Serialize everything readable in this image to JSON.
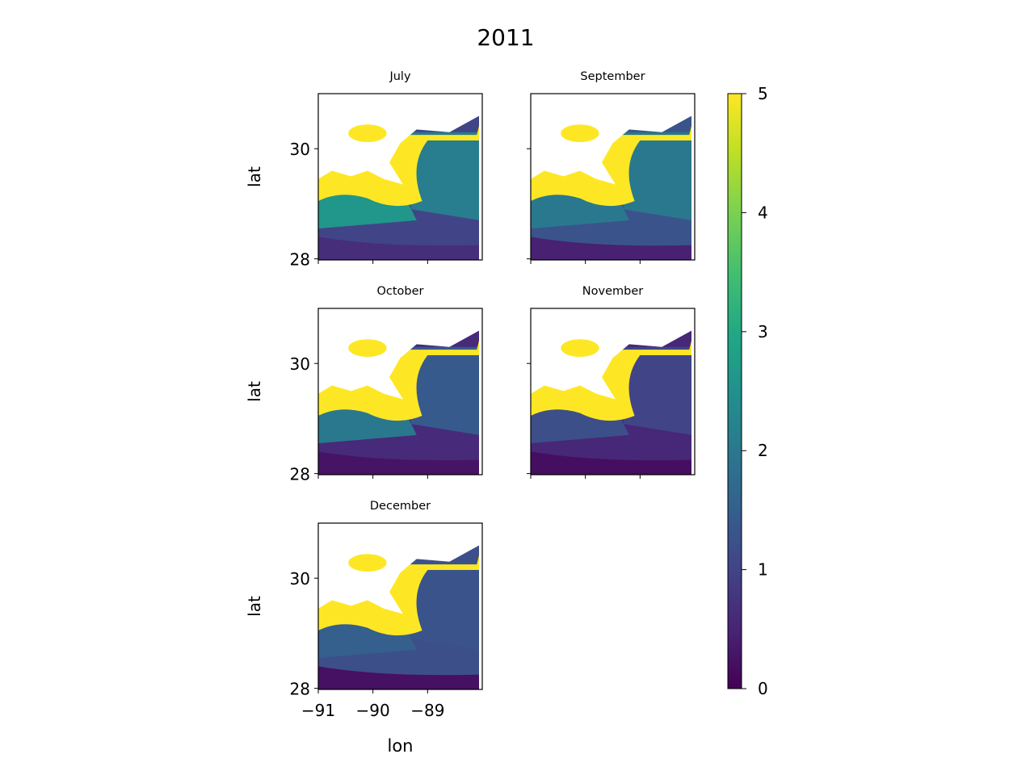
{
  "figure": {
    "title": "2011"
  },
  "chart_data": {
    "type": "heatmap",
    "title": "2011",
    "variable_colormap": "viridis",
    "colorbar": {
      "range": [
        0,
        5
      ],
      "ticks": [
        "0",
        "1",
        "2",
        "3",
        "4",
        "5"
      ]
    },
    "xlabel": "lon",
    "ylabel": "lat",
    "xlim": [
      -91.0,
      -88.0
    ],
    "ylim": [
      27.98,
      31.0
    ],
    "x_ticks": [
      "−91",
      "−90",
      "−89"
    ],
    "y_ticks": [
      "28",
      "30"
    ],
    "panels": [
      {
        "name": "July",
        "offshore_value": 1.0,
        "plume": 0.65,
        "west_shelf": 2.6,
        "east_water": 2.1
      },
      {
        "name": "September",
        "offshore_value": 1.3,
        "plume": 0.45,
        "west_shelf": 2.0,
        "east_water": 2.0
      },
      {
        "name": "October",
        "offshore_value": 0.6,
        "plume": 0.25,
        "west_shelf": 2.0,
        "east_water": 1.4
      },
      {
        "name": "November",
        "offshore_value": 0.55,
        "plume": 0.18,
        "west_shelf": 1.2,
        "east_water": 1.0
      },
      {
        "name": "December",
        "offshore_value": 1.2,
        "plume": 0.22,
        "west_shelf": 1.5,
        "east_water": 1.3
      }
    ]
  }
}
